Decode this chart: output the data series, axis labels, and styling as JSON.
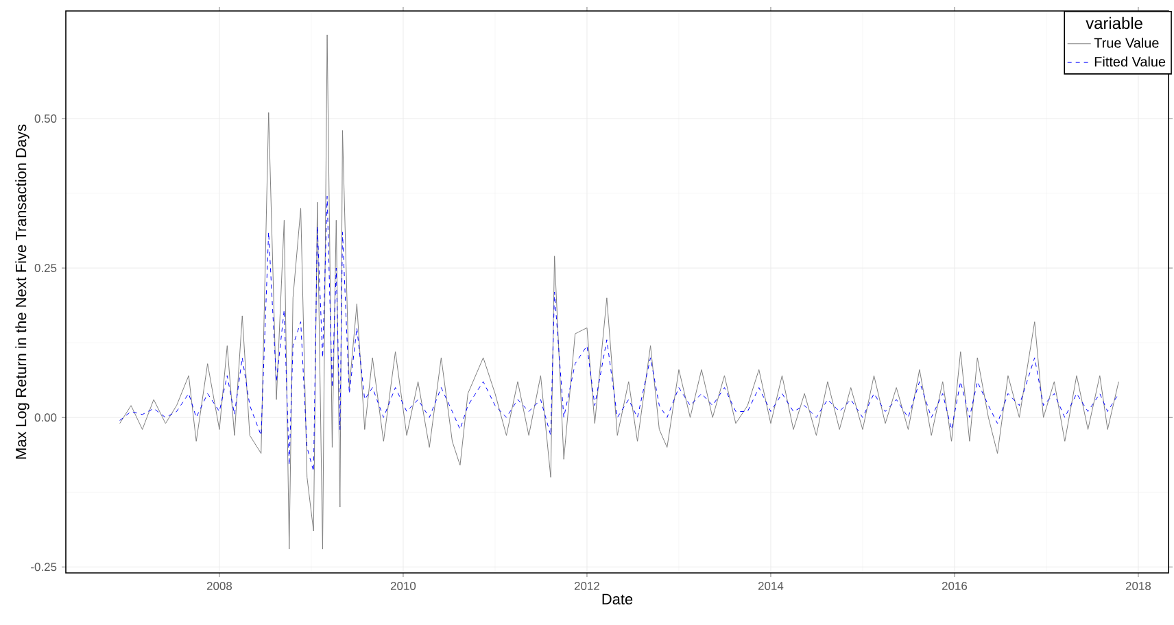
{
  "chart_data": {
    "type": "line",
    "xlabel": "Date",
    "ylabel": "Max Log Return in the Next Five Transaction Days",
    "legend_title": "variable",
    "x": [
      "2006-12-01",
      "2007-01-15",
      "2007-03-01",
      "2007-04-15",
      "2007-06-01",
      "2007-07-15",
      "2007-09-01",
      "2007-10-01",
      "2007-11-15",
      "2008-01-01",
      "2008-02-01",
      "2008-03-01",
      "2008-04-01",
      "2008-05-01",
      "2008-06-15",
      "2008-07-15",
      "2008-08-15",
      "2008-09-15",
      "2008-10-05",
      "2008-10-20",
      "2008-11-20",
      "2008-12-15",
      "2009-01-10",
      "2009-01-25",
      "2009-02-15",
      "2009-03-05",
      "2009-03-25",
      "2009-04-10",
      "2009-04-25",
      "2009-05-05",
      "2009-06-01",
      "2009-07-01",
      "2009-08-01",
      "2009-09-01",
      "2009-10-15",
      "2009-12-01",
      "2010-01-15",
      "2010-03-01",
      "2010-04-15",
      "2010-06-01",
      "2010-07-15",
      "2010-08-15",
      "2010-09-15",
      "2010-11-15",
      "2011-01-01",
      "2011-02-15",
      "2011-04-01",
      "2011-05-15",
      "2011-07-01",
      "2011-08-10",
      "2011-08-25",
      "2011-10-01",
      "2011-11-15",
      "2012-01-01",
      "2012-02-01",
      "2012-03-20",
      "2012-05-01",
      "2012-06-15",
      "2012-07-20",
      "2012-09-10",
      "2012-10-15",
      "2012-11-15",
      "2013-01-01",
      "2013-02-15",
      "2013-04-01",
      "2013-05-15",
      "2013-07-01",
      "2013-08-15",
      "2013-10-01",
      "2013-11-15",
      "2014-01-01",
      "2014-02-15",
      "2014-04-01",
      "2014-05-15",
      "2014-07-01",
      "2014-08-15",
      "2014-10-01",
      "2014-11-15",
      "2015-01-01",
      "2015-02-15",
      "2015-04-01",
      "2015-05-15",
      "2015-07-01",
      "2015-08-15",
      "2015-10-01",
      "2015-11-15",
      "2015-12-20",
      "2016-01-25",
      "2016-03-01",
      "2016-04-01",
      "2016-05-15",
      "2016-06-20",
      "2016-08-01",
      "2016-09-15",
      "2016-11-15",
      "2016-12-20",
      "2017-02-01",
      "2017-03-15",
      "2017-05-01",
      "2017-06-15",
      "2017-08-01",
      "2017-09-01",
      "2017-10-15"
    ],
    "series": [
      {
        "name": "True Value",
        "color": "#808080",
        "line_style": "solid",
        "values": [
          -0.01,
          0.02,
          -0.02,
          0.03,
          -0.01,
          0.02,
          0.07,
          -0.04,
          0.09,
          -0.02,
          0.12,
          -0.03,
          0.17,
          -0.03,
          -0.06,
          0.51,
          0.03,
          0.33,
          -0.22,
          0.2,
          0.35,
          -0.1,
          -0.19,
          0.36,
          -0.22,
          0.64,
          -0.05,
          0.33,
          -0.15,
          0.48,
          0.05,
          0.19,
          -0.02,
          0.1,
          -0.04,
          0.11,
          -0.03,
          0.06,
          -0.05,
          0.1,
          -0.04,
          -0.08,
          0.04,
          0.1,
          0.04,
          -0.03,
          0.06,
          -0.03,
          0.07,
          -0.1,
          0.27,
          -0.07,
          0.14,
          0.15,
          -0.01,
          0.2,
          -0.03,
          0.06,
          -0.04,
          0.12,
          -0.02,
          -0.05,
          0.08,
          0.0,
          0.08,
          0.0,
          0.07,
          -0.01,
          0.02,
          0.08,
          -0.01,
          0.07,
          -0.02,
          0.04,
          -0.03,
          0.06,
          -0.02,
          0.05,
          -0.02,
          0.07,
          -0.01,
          0.05,
          -0.02,
          0.08,
          -0.03,
          0.06,
          -0.04,
          0.11,
          -0.04,
          0.1,
          0.0,
          -0.06,
          0.07,
          0.0,
          0.16,
          0.0,
          0.06,
          -0.04,
          0.07,
          -0.02,
          0.07,
          -0.02,
          0.06
        ]
      },
      {
        "name": "Fitted Value",
        "color": "#0000ff",
        "line_style": "dashed",
        "values": [
          -0.005,
          0.01,
          0.005,
          0.015,
          0.0,
          0.01,
          0.04,
          0.0,
          0.04,
          0.01,
          0.07,
          0.005,
          0.1,
          0.02,
          -0.03,
          0.31,
          0.06,
          0.18,
          -0.08,
          0.12,
          0.16,
          -0.05,
          -0.09,
          0.32,
          0.1,
          0.37,
          0.05,
          0.25,
          -0.02,
          0.31,
          0.04,
          0.15,
          0.03,
          0.05,
          0.0,
          0.05,
          0.01,
          0.03,
          0.0,
          0.05,
          0.01,
          -0.02,
          0.02,
          0.06,
          0.02,
          0.0,
          0.03,
          0.01,
          0.03,
          -0.03,
          0.21,
          0.0,
          0.09,
          0.12,
          0.02,
          0.13,
          0.0,
          0.03,
          0.0,
          0.1,
          0.02,
          0.0,
          0.05,
          0.02,
          0.04,
          0.02,
          0.05,
          0.01,
          0.01,
          0.05,
          0.01,
          0.04,
          0.01,
          0.02,
          0.0,
          0.03,
          0.01,
          0.03,
          0.0,
          0.04,
          0.01,
          0.03,
          0.0,
          0.06,
          0.0,
          0.04,
          -0.02,
          0.06,
          0.0,
          0.06,
          0.02,
          -0.01,
          0.04,
          0.02,
          0.1,
          0.02,
          0.04,
          0.0,
          0.04,
          0.01,
          0.04,
          0.01,
          0.04
        ]
      }
    ],
    "xlim": [
      "2006-05",
      "2018-05"
    ],
    "xticks": [
      "2008",
      "2010",
      "2012",
      "2014",
      "2016",
      "2018"
    ],
    "ylim": [
      -0.26,
      0.68
    ],
    "yticks": [
      {
        "value": -0.25,
        "label": "-0.25"
      },
      {
        "value": 0,
        "label": "0.00"
      },
      {
        "value": 0.25,
        "label": "0.25"
      },
      {
        "value": 0.5,
        "label": "0.50"
      }
    ],
    "grid": true,
    "legend": "top right",
    "marker": "none"
  }
}
